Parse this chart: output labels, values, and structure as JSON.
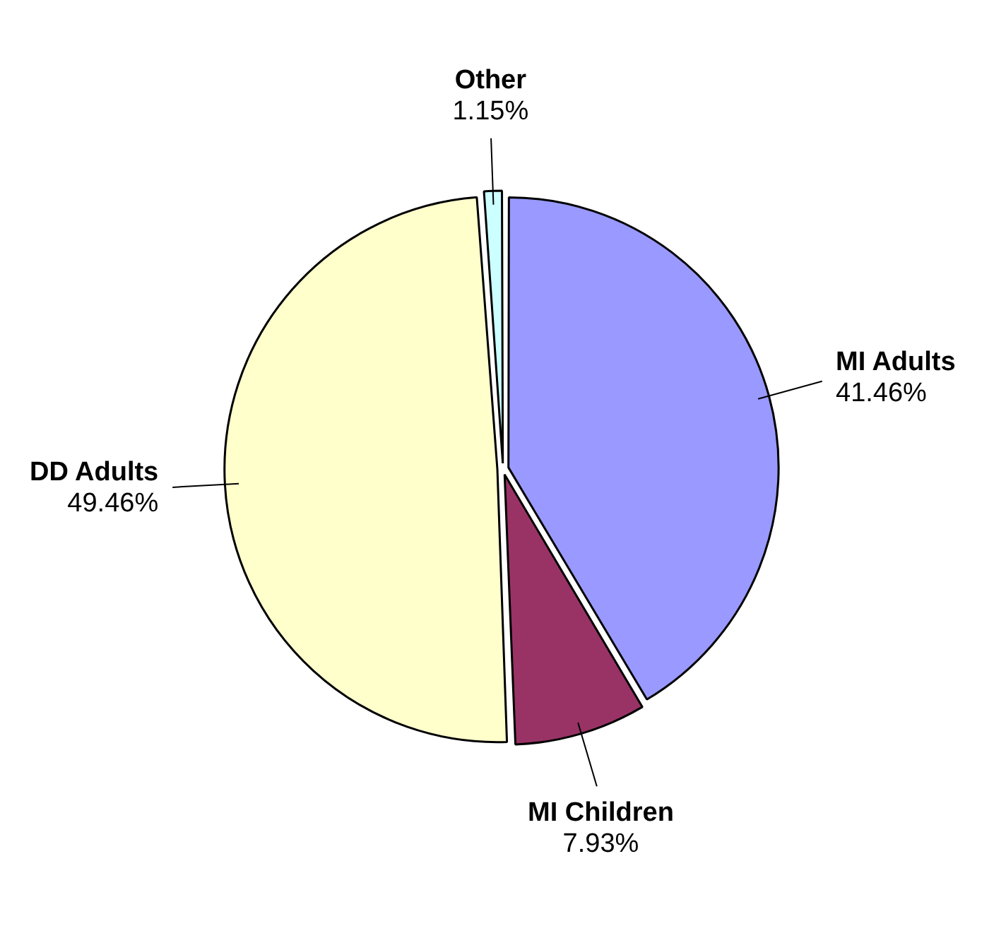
{
  "chart_data": {
    "type": "pie",
    "categories": [
      "MI Adults",
      "MI Children",
      "DD Adults",
      "Other"
    ],
    "values": [
      41.46,
      7.93,
      49.46,
      1.15
    ],
    "colors": [
      "#9999ff",
      "#993366",
      "#ffffcc",
      "#ccffff"
    ],
    "value_labels": [
      "41.46%",
      "7.93%",
      "49.46%",
      "1.15%"
    ],
    "legend": false
  }
}
